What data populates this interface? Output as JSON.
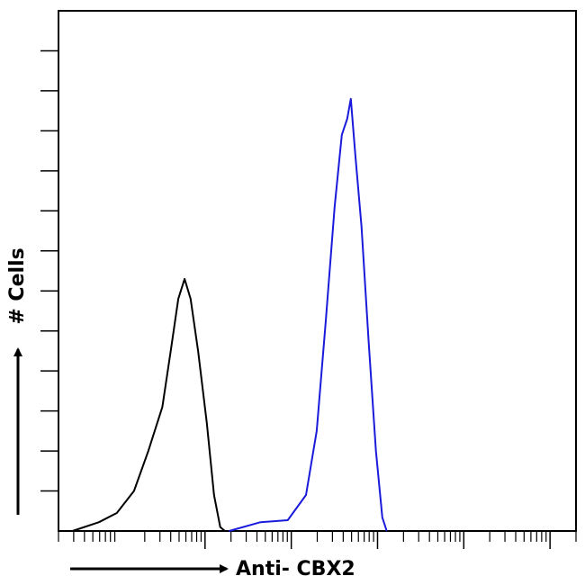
{
  "chart_data": {
    "type": "line",
    "x_label": "Anti- CBX2",
    "y_label": "# Cells",
    "xscale": "log",
    "xlim": [
      0.2,
      200000
    ],
    "xticks": [
      10,
      100,
      1000,
      10000,
      100000
    ],
    "minor_ticks": true,
    "ylim": [
      0,
      130
    ],
    "yticks": [
      10,
      20,
      30,
      40,
      50,
      60,
      70,
      80,
      90,
      100,
      110,
      120
    ],
    "series": [
      {
        "color": "#000000",
        "x": [
          0.29,
          0.59,
          0.95,
          1.5,
          2.2,
          3.2,
          4.0,
          4.9,
          5.8,
          6.8,
          8.3,
          10.5,
          12.7,
          15,
          17
        ],
        "values": [
          0,
          2.2,
          4.5,
          10,
          20,
          31,
          45,
          58,
          63,
          58,
          45,
          27,
          9,
          1,
          0
        ]
      },
      {
        "color": "#1a1adb",
        "x": [
          19,
          44,
          91,
          148,
          197,
          250,
          318,
          385,
          445,
          490,
          552,
          653,
          791,
          959,
          1135,
          1279
        ],
        "values": [
          0,
          2.2,
          2.7,
          9,
          25,
          52,
          81,
          99,
          103,
          108,
          94,
          76,
          47,
          20,
          3.4,
          0
        ]
      }
    ]
  }
}
